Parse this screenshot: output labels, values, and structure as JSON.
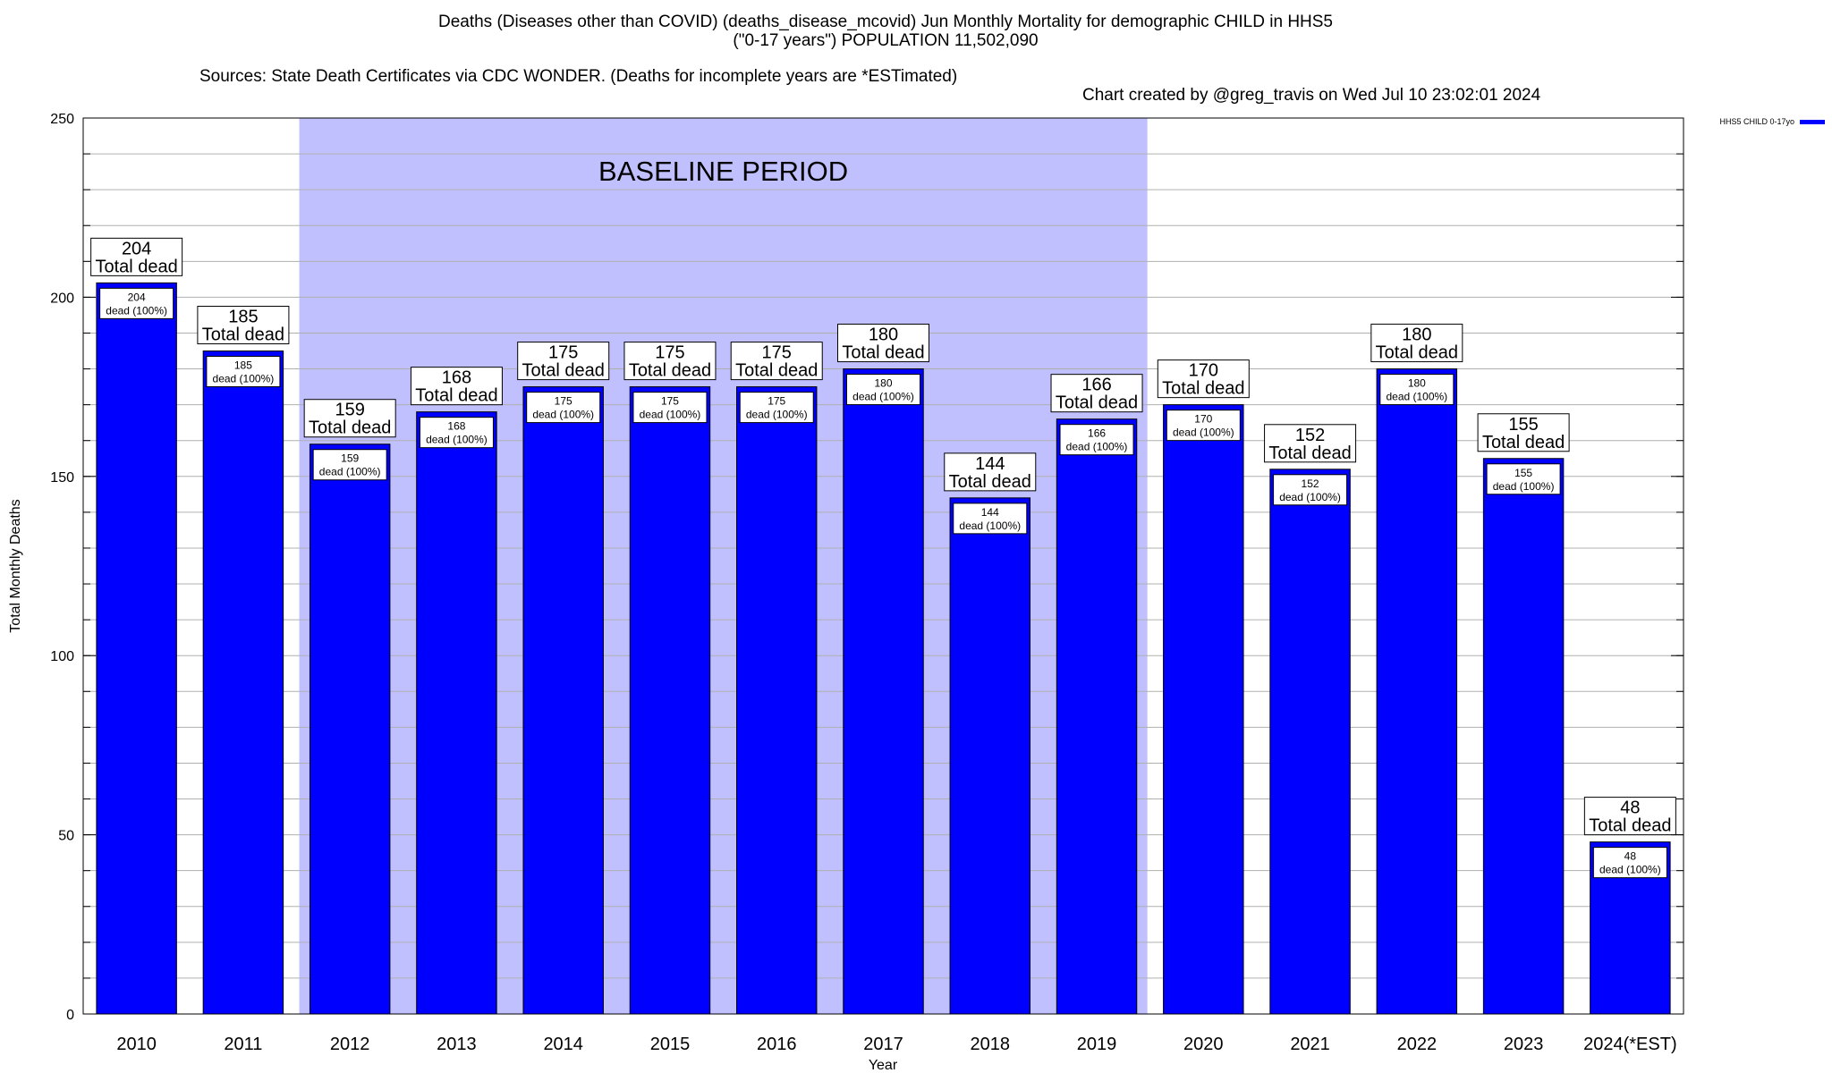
{
  "title": {
    "line1": "Deaths (Diseases other than COVID) (deaths_disease_mcovid) Jun Monthly Mortality for demographic CHILD in HHS5",
    "line2": "(\"0-17 years\") POPULATION 11,502,090",
    "sources": "Sources: State Death Certificates via CDC WONDER. (Deaths for incomplete years are *ESTimated)",
    "credit": "Chart created by @greg_travis on Wed Jul 10 23:02:01 2024"
  },
  "legend": {
    "label": "HHS5 CHILD 0-17yo",
    "color": "#0000ff"
  },
  "colors": {
    "bar": "#0000ff",
    "baseline": "#c0c0ff",
    "grid": "#b0b0b0"
  },
  "chart_data": {
    "type": "bar",
    "xlabel": "Year",
    "ylabel": "Total Monthly Deaths",
    "ylim": [
      0,
      250
    ],
    "yticks": [
      0,
      50,
      100,
      150,
      200,
      250
    ],
    "grid": true,
    "legend_position": "top-right",
    "categories": [
      "2010",
      "2011",
      "2012",
      "2013",
      "2014",
      "2015",
      "2016",
      "2017",
      "2018",
      "2019",
      "2020",
      "2021",
      "2022",
      "2023",
      "2024(*EST)"
    ],
    "series": [
      {
        "name": "HHS5 CHILD 0-17yo",
        "values": [
          204,
          185,
          159,
          168,
          175,
          175,
          175,
          180,
          144,
          166,
          170,
          152,
          180,
          155,
          48
        ]
      }
    ],
    "total_label": "Total dead",
    "inner_label": "dead (100%)",
    "baseline": {
      "label": "BASELINE PERIOD",
      "start": "2012",
      "end": "2019"
    }
  }
}
